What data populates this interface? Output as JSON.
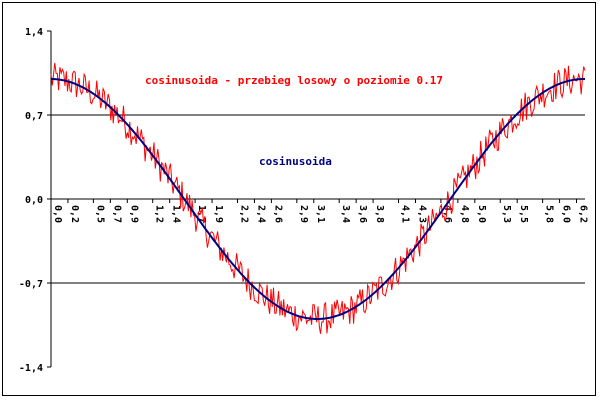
{
  "chart_data": {
    "type": "line",
    "xlim": [
      0,
      6.3
    ],
    "ylim": [
      -1.4,
      1.4
    ],
    "y_ticks": [
      1.4,
      0.7,
      0.0,
      -0.7,
      -1.4
    ],
    "y_tick_labels": [
      "1,4",
      "0,7",
      "0,0",
      "-0,7",
      "-1,4"
    ],
    "x_tick_values": [
      0.0,
      0.2,
      0.5,
      0.7,
      0.9,
      1.2,
      1.4,
      1.7,
      1.9,
      2.2,
      2.4,
      2.6,
      2.9,
      3.1,
      3.4,
      3.6,
      3.8,
      4.1,
      4.3,
      4.6,
      4.8,
      5.0,
      5.3,
      5.5,
      5.8,
      6.0,
      6.2
    ],
    "x_tick_labels": [
      "0,0",
      "0,2",
      "0,5",
      "0,7",
      "0,9",
      "1,2",
      "1,4",
      "1,7",
      "1,9",
      "2,2",
      "2,4",
      "2,6",
      "2,9",
      "3,1",
      "3,4",
      "3,6",
      "3,8",
      "4,1",
      "4,3",
      "4,6",
      "4,8",
      "5,0",
      "5,3",
      "5,5",
      "5,8",
      "6,0",
      "6,2"
    ],
    "gridlines_y": [
      0.7,
      -0.7
    ],
    "series": [
      {
        "name": "cosinusoida - przebieg losowy o poziomie 0.17",
        "color": "#ff0000",
        "function": "cos(x)+noise",
        "noise_level": 0.17
      },
      {
        "name": "cosinusoida",
        "color": "#000080",
        "function": "cos(x)"
      }
    ],
    "annotations": [
      {
        "text": "cosinusoida - przebieg losowy o poziomie 0.17",
        "color": "#ff0000"
      },
      {
        "text": "cosinusoida",
        "color": "#000080"
      }
    ]
  }
}
